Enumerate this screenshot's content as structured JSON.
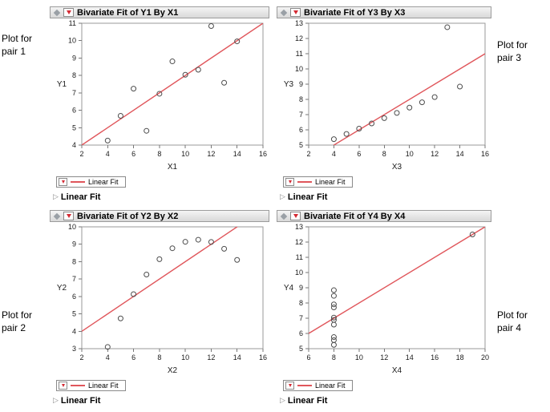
{
  "colors": {
    "fit_line": "#e0565b",
    "red_triangle": "#d42a33",
    "marker_stroke": "#4d4d4d",
    "frame_stroke": "#9a9a9a"
  },
  "side_labels": [
    {
      "text": "Plot for pair 1"
    },
    {
      "text": "Plot for pair 3"
    },
    {
      "text": "Plot for pair 2"
    },
    {
      "text": "Plot for pair 4"
    }
  ],
  "panels": [
    {
      "title": "Bivariate Fit of Y1 By X1",
      "legend_label": "Linear Fit",
      "outline_label": "Linear Fit",
      "chart_data": {
        "type": "scatter",
        "title": "Bivariate Fit of Y1 By X1",
        "xlabel": "X1",
        "ylabel": "Y1",
        "xlim": [
          2,
          16
        ],
        "ylim": [
          4,
          11
        ],
        "xticks": [
          2,
          4,
          6,
          8,
          10,
          12,
          14,
          16
        ],
        "yticks": [
          4,
          5,
          6,
          7,
          8,
          9,
          10,
          11
        ],
        "x": [
          10,
          8,
          13,
          9,
          11,
          14,
          6,
          4,
          12,
          7,
          5
        ],
        "y": [
          8.04,
          6.95,
          7.58,
          8.81,
          8.33,
          9.96,
          7.24,
          4.26,
          10.84,
          4.82,
          5.68
        ],
        "fit_line": {
          "slope": 0.5,
          "intercept": 3,
          "label": "Linear Fit"
        },
        "grid": false,
        "legend_position": "below"
      }
    },
    {
      "title": "Bivariate Fit of Y3 By X3",
      "legend_label": "Linear Fit",
      "outline_label": "Linear Fit",
      "chart_data": {
        "type": "scatter",
        "title": "Bivariate Fit of Y3 By X3",
        "xlabel": "X3",
        "ylabel": "Y3",
        "xlim": [
          2,
          16
        ],
        "ylim": [
          5,
          13
        ],
        "xticks": [
          2,
          4,
          6,
          8,
          10,
          12,
          14,
          16
        ],
        "yticks": [
          5,
          6,
          7,
          8,
          9,
          10,
          11,
          12,
          13
        ],
        "x": [
          10,
          8,
          13,
          9,
          11,
          14,
          6,
          4,
          12,
          7,
          5
        ],
        "y": [
          7.46,
          6.77,
          12.74,
          7.11,
          7.81,
          8.84,
          6.08,
          5.39,
          8.15,
          6.42,
          5.73
        ],
        "fit_line": {
          "slope": 0.5,
          "intercept": 3,
          "label": "Linear Fit"
        },
        "grid": false,
        "legend_position": "below"
      }
    },
    {
      "title": "Bivariate Fit of Y2 By X2",
      "legend_label": "Linear Fit",
      "outline_label": "Linear Fit",
      "chart_data": {
        "type": "scatter",
        "title": "Bivariate Fit of Y2 By X2",
        "xlabel": "X2",
        "ylabel": "Y2",
        "xlim": [
          2,
          16
        ],
        "ylim": [
          3,
          10
        ],
        "xticks": [
          2,
          4,
          6,
          8,
          10,
          12,
          14,
          16
        ],
        "yticks": [
          3,
          4,
          5,
          6,
          7,
          8,
          9,
          10
        ],
        "x": [
          10,
          8,
          13,
          9,
          11,
          14,
          6,
          4,
          12,
          7,
          5
        ],
        "y": [
          9.14,
          8.14,
          8.74,
          8.77,
          9.26,
          8.1,
          6.13,
          3.1,
          9.13,
          7.26,
          4.74
        ],
        "fit_line": {
          "slope": 0.5,
          "intercept": 3,
          "label": "Linear Fit"
        },
        "grid": false,
        "legend_position": "below"
      }
    },
    {
      "title": "Bivariate Fit of Y4 By X4",
      "legend_label": "Linear Fit",
      "outline_label": "Linear Fit",
      "chart_data": {
        "type": "scatter",
        "title": "Bivariate Fit of Y4 By X4",
        "xlabel": "X4",
        "ylabel": "Y4",
        "xlim": [
          6,
          20
        ],
        "ylim": [
          5,
          13
        ],
        "xticks": [
          6,
          8,
          10,
          12,
          14,
          16,
          18,
          20
        ],
        "yticks": [
          5,
          6,
          7,
          8,
          9,
          10,
          11,
          12,
          13
        ],
        "x": [
          8,
          8,
          8,
          8,
          8,
          8,
          8,
          19,
          8,
          8,
          8
        ],
        "y": [
          6.58,
          5.76,
          7.71,
          8.84,
          8.47,
          7.04,
          5.25,
          12.5,
          5.56,
          7.91,
          6.89
        ],
        "fit_line": {
          "slope": 0.5,
          "intercept": 3,
          "label": "Linear Fit"
        },
        "grid": false,
        "legend_position": "below"
      }
    }
  ]
}
